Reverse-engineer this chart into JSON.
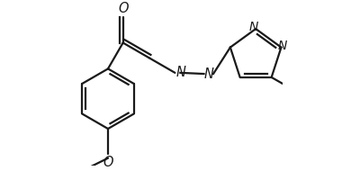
{
  "bg_color": "#ffffff",
  "line_color": "#1a1a1a",
  "lw": 1.6,
  "fs": 10.5,
  "figsize": [
    3.9,
    1.9
  ],
  "dpi": 100,
  "xlim": [
    0.0,
    1.0
  ],
  "ylim": [
    0.05,
    0.78
  ]
}
